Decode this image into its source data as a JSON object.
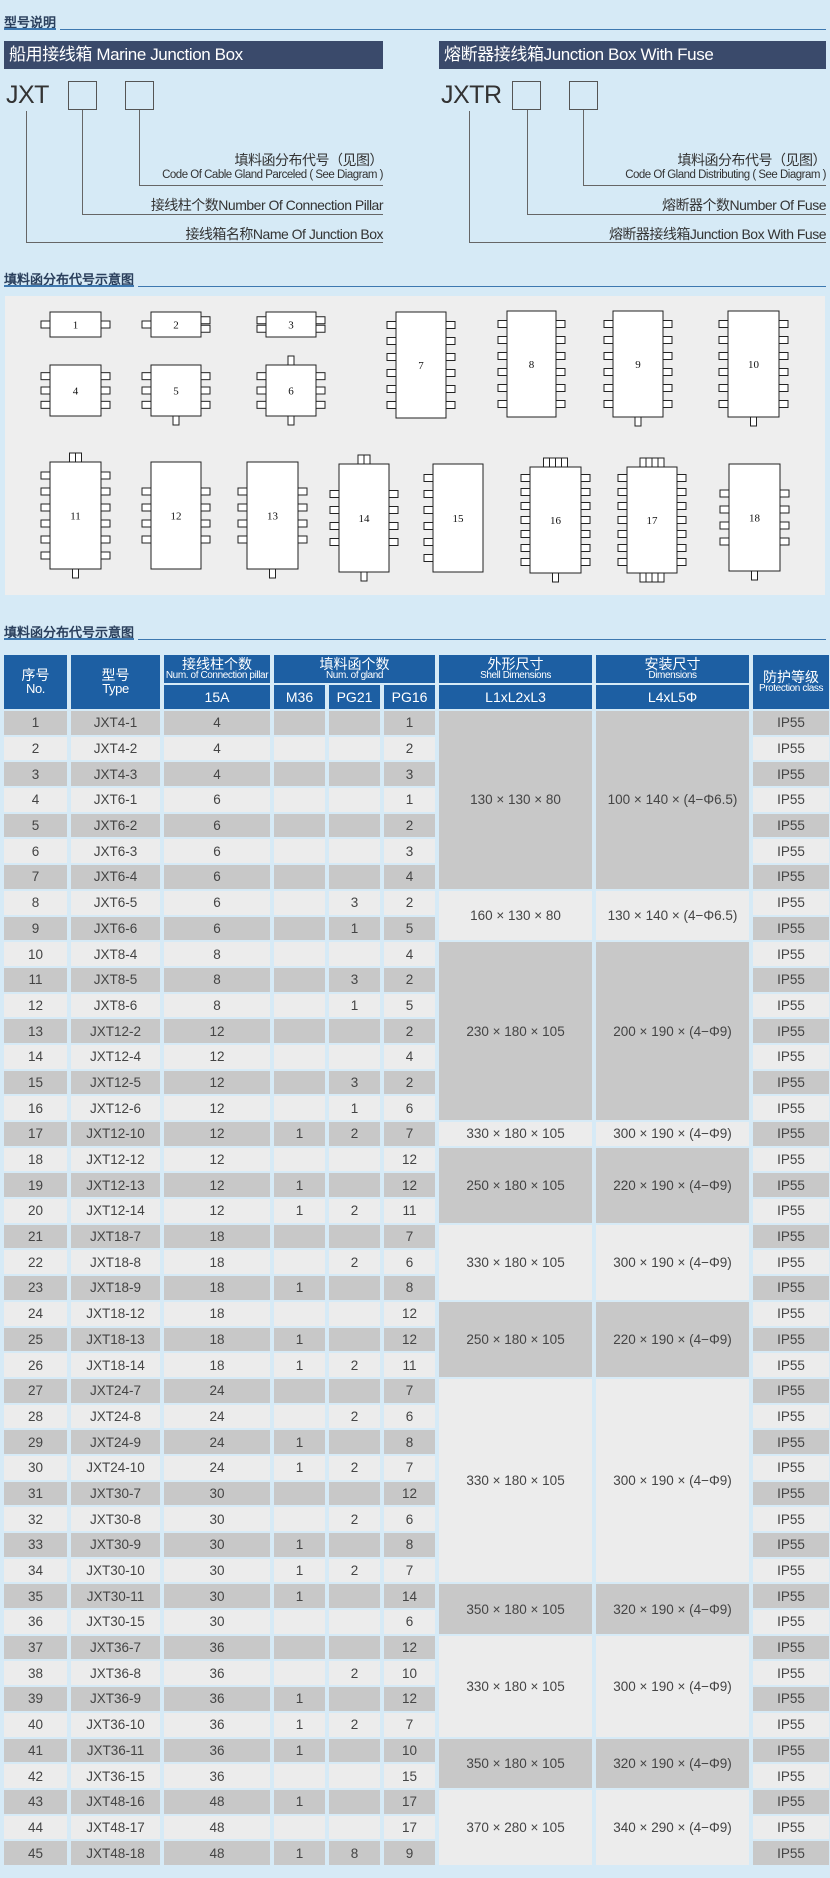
{
  "colors": {
    "background": "#d6eaf6",
    "header_bar": "#3a4a6b",
    "table_header": "#1d5fa3",
    "row_dark": "#c8c8c8",
    "row_light": "#ececec"
  },
  "section1": {
    "title": "型号说明",
    "left": {
      "header": "船用接线箱 Marine Junction Box",
      "code": "JXT",
      "label_gland_cn": "填料函分布代号（见图）",
      "label_gland_en": "Code Of Cable Gland Parceled ( See Diagram )",
      "label_pillar": "接线柱个数Number Of Connection Pillar",
      "label_name": "接线箱名称Name Of Junction Box"
    },
    "right": {
      "header": "熔断器接线箱Junction Box With Fuse",
      "code": "JXTR",
      "label_gland_cn": "填料函分布代号（见图）",
      "label_gland_en": "Code Of Gland Distributing ( See Diagram )",
      "label_fuse": "熔断器个数Number Of Fuse",
      "label_name": "熔断器接线箱Junction Box With Fuse"
    }
  },
  "section2": {
    "title": "填料函分布代号示意图",
    "diagram_labels": [
      "1",
      "2",
      "3",
      "4",
      "5",
      "6",
      "7",
      "8",
      "9",
      "10",
      "11",
      "12",
      "13",
      "14",
      "15",
      "16",
      "17",
      "18"
    ]
  },
  "section3": {
    "title": "填料函分布代号示意图",
    "headers": {
      "no_cn": "序号",
      "no_en": "No.",
      "type_cn": "型号",
      "type_en": "Type",
      "pillar_cn": "接线柱个数",
      "pillar_en": "Num. of Connection pillar",
      "pillar_sub": "15A",
      "gland_cn": "填料函个数",
      "gland_en": "Num. of gland",
      "m36": "M36",
      "pg21": "PG21",
      "pg16": "PG16",
      "shell_cn": "外形尺寸",
      "shell_en": "Shell Dimensions",
      "shell_sub": "L1xL2xL3",
      "install_cn": "安装尺寸",
      "install_en": "Dimensions",
      "install_sub": "L4xL5Φ",
      "prot_cn": "防护等级",
      "prot_en": "Protection class"
    },
    "rows": [
      [
        "1",
        "JXT4-1",
        "4",
        "",
        "",
        "1",
        "IP55"
      ],
      [
        "2",
        "JXT4-2",
        "4",
        "",
        "",
        "2",
        "IP55"
      ],
      [
        "3",
        "JXT4-3",
        "4",
        "",
        "",
        "3",
        "IP55"
      ],
      [
        "4",
        "JXT6-1",
        "6",
        "",
        "",
        "1",
        "IP55"
      ],
      [
        "5",
        "JXT6-2",
        "6",
        "",
        "",
        "2",
        "IP55"
      ],
      [
        "6",
        "JXT6-3",
        "6",
        "",
        "",
        "3",
        "IP55"
      ],
      [
        "7",
        "JXT6-4",
        "6",
        "",
        "",
        "4",
        "IP55"
      ],
      [
        "8",
        "JXT6-5",
        "6",
        "",
        "3",
        "2",
        "IP55"
      ],
      [
        "9",
        "JXT6-6",
        "6",
        "",
        "1",
        "5",
        "IP55"
      ],
      [
        "10",
        "JXT8-4",
        "8",
        "",
        "",
        "4",
        "IP55"
      ],
      [
        "11",
        "JXT8-5",
        "8",
        "",
        "3",
        "2",
        "IP55"
      ],
      [
        "12",
        "JXT8-6",
        "8",
        "",
        "1",
        "5",
        "IP55"
      ],
      [
        "13",
        "JXT12-2",
        "12",
        "",
        "",
        "2",
        "IP55"
      ],
      [
        "14",
        "JXT12-4",
        "12",
        "",
        "",
        "4",
        "IP55"
      ],
      [
        "15",
        "JXT12-5",
        "12",
        "",
        "3",
        "2",
        "IP55"
      ],
      [
        "16",
        "JXT12-6",
        "12",
        "",
        "1",
        "6",
        "IP55"
      ],
      [
        "17",
        "JXT12-10",
        "12",
        "1",
        "2",
        "7",
        "IP55"
      ],
      [
        "18",
        "JXT12-12",
        "12",
        "",
        "",
        "12",
        "IP55"
      ],
      [
        "19",
        "JXT12-13",
        "12",
        "1",
        "",
        "12",
        "IP55"
      ],
      [
        "20",
        "JXT12-14",
        "12",
        "1",
        "2",
        "11",
        "IP55"
      ],
      [
        "21",
        "JXT18-7",
        "18",
        "",
        "",
        "7",
        "IP55"
      ],
      [
        "22",
        "JXT18-8",
        "18",
        "",
        "2",
        "6",
        "IP55"
      ],
      [
        "23",
        "JXT18-9",
        "18",
        "1",
        "",
        "8",
        "IP55"
      ],
      [
        "24",
        "JXT18-12",
        "18",
        "",
        "",
        "12",
        "IP55"
      ],
      [
        "25",
        "JXT18-13",
        "18",
        "1",
        "",
        "12",
        "IP55"
      ],
      [
        "26",
        "JXT18-14",
        "18",
        "1",
        "2",
        "11",
        "IP55"
      ],
      [
        "27",
        "JXT24-7",
        "24",
        "",
        "",
        "7",
        "IP55"
      ],
      [
        "28",
        "JXT24-8",
        "24",
        "",
        "2",
        "6",
        "IP55"
      ],
      [
        "29",
        "JXT24-9",
        "24",
        "1",
        "",
        "8",
        "IP55"
      ],
      [
        "30",
        "JXT24-10",
        "24",
        "1",
        "2",
        "7",
        "IP55"
      ],
      [
        "31",
        "JXT30-7",
        "30",
        "",
        "",
        "12",
        "IP55"
      ],
      [
        "32",
        "JXT30-8",
        "30",
        "",
        "2",
        "6",
        "IP55"
      ],
      [
        "33",
        "JXT30-9",
        "30",
        "1",
        "",
        "8",
        "IP55"
      ],
      [
        "34",
        "JXT30-10",
        "30",
        "1",
        "2",
        "7",
        "IP55"
      ],
      [
        "35",
        "JXT30-11",
        "30",
        "1",
        "",
        "14",
        "IP55"
      ],
      [
        "36",
        "JXT30-15",
        "30",
        "",
        "",
        "6",
        "IP55"
      ],
      [
        "37",
        "JXT36-7",
        "36",
        "",
        "",
        "12",
        "IP55"
      ],
      [
        "38",
        "JXT36-8",
        "36",
        "",
        "2",
        "10",
        "IP55"
      ],
      [
        "39",
        "JXT36-9",
        "36",
        "1",
        "",
        "12",
        "IP55"
      ],
      [
        "40",
        "JXT36-10",
        "36",
        "1",
        "2",
        "7",
        "IP55"
      ],
      [
        "41",
        "JXT36-11",
        "36",
        "1",
        "",
        "10",
        "IP55"
      ],
      [
        "42",
        "JXT36-15",
        "36",
        "",
        "",
        "15",
        "IP55"
      ],
      [
        "43",
        "JXT48-16",
        "48",
        "1",
        "",
        "17",
        "IP55"
      ],
      [
        "44",
        "JXT48-17",
        "48",
        "",
        "",
        "17",
        "IP55"
      ],
      [
        "45",
        "JXT48-18",
        "48",
        "1",
        "8",
        "9",
        "IP55"
      ]
    ],
    "dimension_groups": [
      {
        "from": 1,
        "to": 7,
        "shell": "130 × 130 × 80",
        "install": "100 × 140 × (4−Φ6.5)"
      },
      {
        "from": 8,
        "to": 9,
        "shell": "160 × 130 × 80",
        "install": "130 × 140 × (4−Φ6.5)"
      },
      {
        "from": 10,
        "to": 16,
        "shell": "230 × 180 × 105",
        "install": "200 × 190 × (4−Φ9)"
      },
      {
        "from": 17,
        "to": 17,
        "shell": "330 × 180 × 105",
        "install": "300 × 190 × (4−Φ9)"
      },
      {
        "from": 18,
        "to": 20,
        "shell": "250 × 180 × 105",
        "install": "220 × 190 × (4−Φ9)"
      },
      {
        "from": 21,
        "to": 23,
        "shell": "330 × 180 × 105",
        "install": "300 × 190 × (4−Φ9)"
      },
      {
        "from": 24,
        "to": 26,
        "shell": "250 × 180 × 105",
        "install": "220 × 190 × (4−Φ9)"
      },
      {
        "from": 27,
        "to": 34,
        "shell": "330 × 180 × 105",
        "install": "300 × 190 × (4−Φ9)"
      },
      {
        "from": 35,
        "to": 36,
        "shell": "350 × 180 × 105",
        "install": "320 × 190 × (4−Φ9)"
      },
      {
        "from": 37,
        "to": 40,
        "shell": "330 × 180 × 105",
        "install": "300 × 190 × (4−Φ9)"
      },
      {
        "from": 41,
        "to": 42,
        "shell": "350 × 180 × 105",
        "install": "320 × 190 × (4−Φ9)"
      },
      {
        "from": 43,
        "to": 45,
        "shell": "370 × 280 × 105",
        "install": "340 × 290 × (4−Φ9)"
      }
    ]
  }
}
